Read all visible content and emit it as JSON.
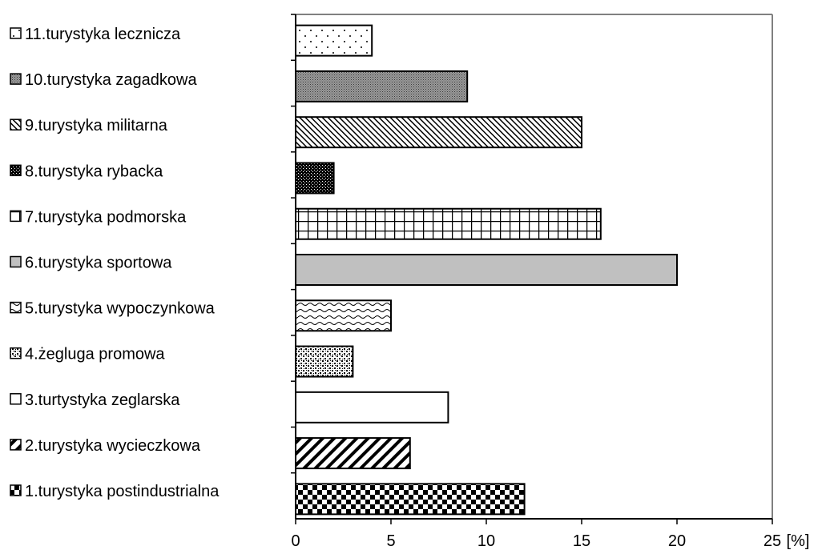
{
  "chart_data": {
    "type": "bar",
    "orientation": "horizontal",
    "title": "",
    "xlabel": "",
    "ylabel": "",
    "unit_label": "[%]",
    "xlim": [
      0,
      25
    ],
    "xticks": [
      0,
      5,
      10,
      15,
      20,
      25
    ],
    "grid": false,
    "legend_position": "left",
    "categories": [
      "1.turystyka postindustrialna",
      "2.turystyka wycieczkowa",
      "3.turtystyka zeglarska",
      "4.żegluga promowa",
      "5.turystyka wypoczynkowa",
      "6.turystyka sportowa",
      "7.turystyka podmorska",
      "8.turystyka rybacka",
      "9.turystyka militarna",
      "10.turystyka zagadkowa",
      "11.turystyka lecznicza"
    ],
    "values": [
      12,
      6,
      8,
      3,
      5,
      20,
      16,
      2,
      15,
      9,
      4
    ],
    "patterns": [
      "checker",
      "diag-wide",
      "solid-white",
      "speckle-dense",
      "wave",
      "solid-gray",
      "grid",
      "dots-dense-dark",
      "diag-fine",
      "crosshatch-fine",
      "dots-sparse"
    ]
  }
}
